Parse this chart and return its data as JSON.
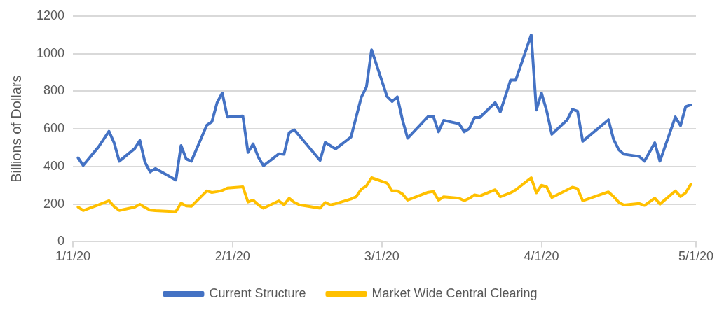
{
  "chart_data": {
    "type": "line",
    "ylabel": "Billions of Dollars",
    "xlim": [
      "2020-01-01",
      "2020-05-01"
    ],
    "xticks": [
      {
        "value": "2020-01-01",
        "label": "1/1/20"
      },
      {
        "value": "2020-02-01",
        "label": "2/1/20"
      },
      {
        "value": "2020-03-01",
        "label": "3/1/20"
      },
      {
        "value": "2020-04-01",
        "label": "4/1/20"
      },
      {
        "value": "2020-05-01",
        "label": "5/1/20"
      }
    ],
    "ylim": [
      0,
      1200
    ],
    "yticks": [
      0,
      200,
      400,
      600,
      800,
      1000,
      1200
    ],
    "grid": "y",
    "legend": "bottom",
    "marker": "none",
    "line_style": "solid",
    "series": [
      {
        "name": "Current Structure",
        "color": "#4472c4",
        "x": [
          "2020-01-02",
          "2020-01-03",
          "2020-01-06",
          "2020-01-08",
          "2020-01-09",
          "2020-01-10",
          "2020-01-13",
          "2020-01-14",
          "2020-01-15",
          "2020-01-16",
          "2020-01-17",
          "2020-01-21",
          "2020-01-22",
          "2020-01-23",
          "2020-01-24",
          "2020-01-27",
          "2020-01-28",
          "2020-01-29",
          "2020-01-30",
          "2020-01-31",
          "2020-02-03",
          "2020-02-04",
          "2020-02-05",
          "2020-02-06",
          "2020-02-07",
          "2020-02-10",
          "2020-02-11",
          "2020-02-12",
          "2020-02-13",
          "2020-02-18",
          "2020-02-19",
          "2020-02-21",
          "2020-02-24",
          "2020-02-26",
          "2020-02-27",
          "2020-02-28",
          "2020-03-02",
          "2020-03-03",
          "2020-03-04",
          "2020-03-05",
          "2020-03-06",
          "2020-03-10",
          "2020-03-11",
          "2020-03-12",
          "2020-03-13",
          "2020-03-16",
          "2020-03-17",
          "2020-03-18",
          "2020-03-19",
          "2020-03-20",
          "2020-03-23",
          "2020-03-24",
          "2020-03-26",
          "2020-03-27",
          "2020-03-30",
          "2020-03-31",
          "2020-04-01",
          "2020-04-02",
          "2020-04-03",
          "2020-04-06",
          "2020-04-07",
          "2020-04-08",
          "2020-04-09",
          "2020-04-14",
          "2020-04-15",
          "2020-04-16",
          "2020-04-17",
          "2020-04-20",
          "2020-04-21",
          "2020-04-23",
          "2020-04-24",
          "2020-04-27",
          "2020-04-28",
          "2020-04-29",
          "2020-04-30"
        ],
        "values": [
          446,
          406,
          505,
          587,
          526,
          428,
          495,
          538,
          422,
          371,
          389,
          328,
          511,
          440,
          428,
          619,
          638,
          739,
          790,
          663,
          668,
          475,
          520,
          450,
          404,
          467,
          465,
          580,
          595,
          432,
          528,
          493,
          556,
          767,
          822,
          1020,
          772,
          745,
          770,
          648,
          550,
          666,
          666,
          584,
          645,
          627,
          584,
          602,
          660,
          660,
          739,
          690,
          859,
          859,
          1099,
          700,
          790,
          696,
          571,
          648,
          703,
          694,
          534,
          648,
          544,
          489,
          465,
          453,
          428,
          526,
          428,
          663,
          617,
          718,
          727
        ]
      },
      {
        "name": "Market Wide Central Clearing",
        "color": "#ffc000",
        "x": [
          "2020-01-02",
          "2020-01-03",
          "2020-01-06",
          "2020-01-08",
          "2020-01-09",
          "2020-01-10",
          "2020-01-13",
          "2020-01-14",
          "2020-01-15",
          "2020-01-16",
          "2020-01-17",
          "2020-01-21",
          "2020-01-22",
          "2020-01-23",
          "2020-01-24",
          "2020-01-27",
          "2020-01-28",
          "2020-01-29",
          "2020-01-30",
          "2020-01-31",
          "2020-02-03",
          "2020-02-04",
          "2020-02-05",
          "2020-02-06",
          "2020-02-07",
          "2020-02-10",
          "2020-02-11",
          "2020-02-12",
          "2020-02-13",
          "2020-02-14",
          "2020-02-18",
          "2020-02-19",
          "2020-02-20",
          "2020-02-21",
          "2020-02-24",
          "2020-02-25",
          "2020-02-26",
          "2020-02-27",
          "2020-02-28",
          "2020-03-02",
          "2020-03-03",
          "2020-03-04",
          "2020-03-05",
          "2020-03-06",
          "2020-03-10",
          "2020-03-11",
          "2020-03-12",
          "2020-03-13",
          "2020-03-16",
          "2020-03-17",
          "2020-03-18",
          "2020-03-19",
          "2020-03-20",
          "2020-03-23",
          "2020-03-24",
          "2020-03-26",
          "2020-03-27",
          "2020-03-30",
          "2020-03-31",
          "2020-04-01",
          "2020-04-02",
          "2020-04-03",
          "2020-04-06",
          "2020-04-07",
          "2020-04-08",
          "2020-04-09",
          "2020-04-14",
          "2020-04-15",
          "2020-04-16",
          "2020-04-17",
          "2020-04-20",
          "2020-04-21",
          "2020-04-23",
          "2020-04-24",
          "2020-04-27",
          "2020-04-28",
          "2020-04-29",
          "2020-04-30"
        ],
        "values": [
          184,
          166,
          196,
          218,
          187,
          166,
          184,
          199,
          182,
          168,
          165,
          160,
          205,
          190,
          188,
          270,
          262,
          266,
          272,
          285,
          292,
          211,
          221,
          196,
          178,
          217,
          196,
          231,
          209,
          196,
          178,
          209,
          196,
          202,
          227,
          239,
          279,
          297,
          340,
          312,
          270,
          270,
          254,
          221,
          263,
          267,
          221,
          239,
          231,
          218,
          231,
          249,
          243,
          276,
          239,
          260,
          276,
          340,
          260,
          300,
          292,
          235,
          276,
          290,
          282,
          218,
          265,
          240,
          210,
          195,
          203,
          193,
          232,
          200,
          270,
          240,
          260,
          305
        ]
      }
    ]
  }
}
